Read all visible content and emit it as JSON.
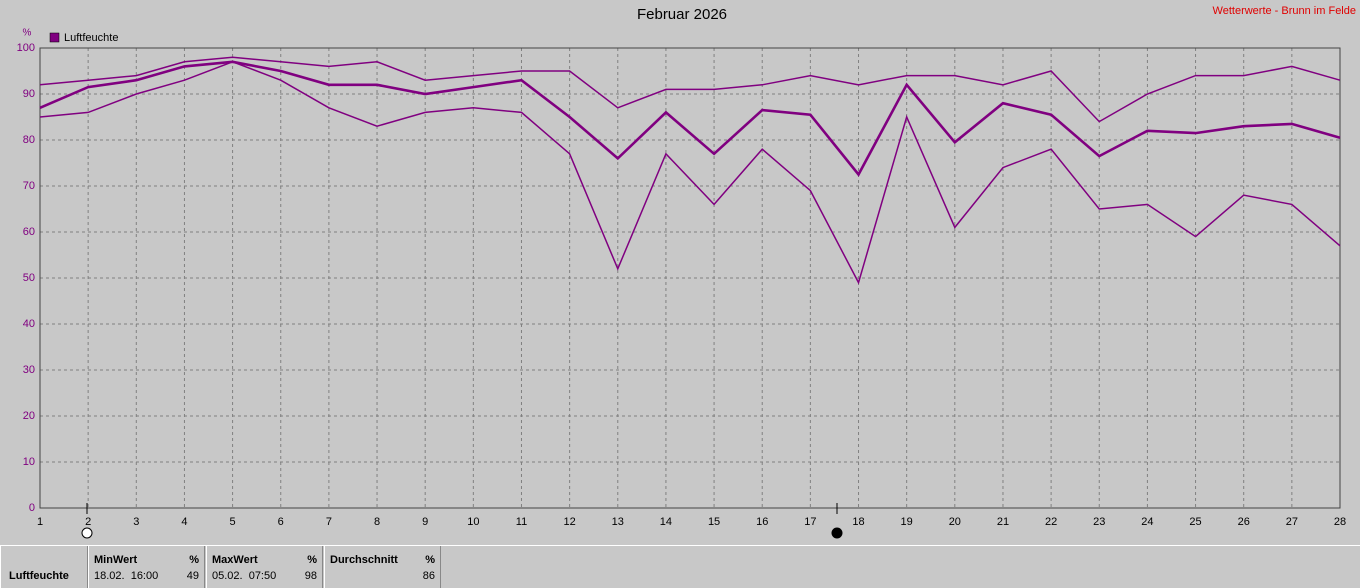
{
  "chart_data": {
    "type": "line",
    "title": "Februar 2026",
    "source": "Wetterwerte - Brunn im Felde",
    "y_label": "%",
    "x": [
      1,
      2,
      3,
      4,
      5,
      6,
      7,
      8,
      9,
      10,
      11,
      12,
      13,
      14,
      15,
      16,
      17,
      18,
      19,
      20,
      21,
      22,
      23,
      24,
      25,
      26,
      27,
      28
    ],
    "xlim": [
      1,
      28
    ],
    "xticks": [
      1,
      2,
      3,
      4,
      5,
      6,
      7,
      8,
      9,
      10,
      11,
      12,
      13,
      14,
      15,
      16,
      17,
      18,
      19,
      20,
      21,
      22,
      23,
      24,
      25,
      26,
      27,
      28
    ],
    "ylim": [
      0,
      100
    ],
    "yticks": [
      0,
      10,
      20,
      30,
      40,
      50,
      60,
      70,
      80,
      90,
      100
    ],
    "grid": true,
    "series": [
      {
        "name": "Luftfeuchte",
        "color": "#800080",
        "values": [
          87,
          91.5,
          93,
          96,
          97,
          95,
          92,
          92,
          90,
          91.5,
          93,
          85,
          76,
          86,
          77,
          86.5,
          85.5,
          72.5,
          92,
          79.5,
          88,
          85.5,
          76.5,
          82,
          81.5,
          83,
          83.5,
          80.5
        ]
      },
      {
        "color": "#800080",
        "values": [
          92,
          93,
          94,
          97,
          98,
          97,
          96,
          97,
          93,
          94,
          95,
          95,
          87,
          91,
          91,
          92,
          94,
          92,
          94,
          94,
          92,
          95,
          84,
          90,
          94,
          94,
          96,
          93
        ]
      },
      {
        "color": "#800080",
        "values": [
          85,
          86,
          90,
          93,
          97,
          93,
          87,
          83,
          86,
          87,
          86,
          77,
          52,
          77,
          66,
          78,
          69,
          49,
          85,
          61,
          74,
          78,
          65,
          66,
          59,
          68,
          66,
          57
        ]
      }
    ]
  },
  "stats": {
    "label": "Luftfeuchte",
    "min": {
      "header": "MinWert",
      "unit": "%",
      "time": "18.02.  16:00",
      "value": "49"
    },
    "max": {
      "header": "MaxWert",
      "unit": "%",
      "time": "05.02.  07:50",
      "value": "98"
    },
    "mean": {
      "header": "Durchschnitt",
      "unit": "%",
      "value": "86"
    }
  }
}
